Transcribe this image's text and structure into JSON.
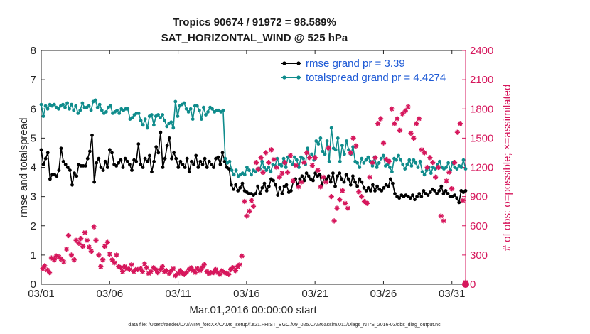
{
  "chart_data": {
    "type": "line",
    "title": "Tropics 90674 / 91972 = 98.589%",
    "subtitle": "SAT_HORIZONTAL_WIND @ 525 hPa",
    "xlabel": "Mar.01,2016 00:00:00 start",
    "ylabel": "rmse and totalspread",
    "ylabel_right": "# of obs: o=possible; ×=assimilated",
    "footer": "data file: /Users/raeder/DAI/ATM_forcXX/CAM6_setup/f.e21.FHIST_BGC.f09_025.CAM6assim.011/Diags_NTrS_2016-03/obs_diag_output.nc",
    "xlim": [
      0,
      31
    ],
    "ylim": [
      0,
      8
    ],
    "ylim_right": [
      0,
      2400
    ],
    "x_ticks": [
      0,
      5,
      10,
      15,
      20,
      25,
      30
    ],
    "x_tick_labels": [
      "03/01",
      "03/06",
      "03/11",
      "03/16",
      "03/21",
      "03/26",
      "03/31"
    ],
    "y_ticks": [
      0,
      1,
      2,
      3,
      4,
      5,
      6,
      7,
      8
    ],
    "y_tick_labels": [
      "0",
      "1",
      "2",
      "3",
      "4",
      "5",
      "6",
      "7",
      "8"
    ],
    "y_right_ticks": [
      0,
      300,
      600,
      900,
      1200,
      1500,
      1800,
      2100,
      2400
    ],
    "y_right_tick_labels": [
      "0",
      "300",
      "600",
      "900",
      "1200",
      "1500",
      "1800",
      "2100",
      "2400"
    ],
    "legend_position": "top-right",
    "colors": {
      "rmse": "#000000",
      "spread": "#0f8c8c",
      "obs": "#d6175c",
      "legend_text": "#1f5bd6"
    },
    "series": [
      {
        "name": "rmse grand pr = 3.39",
        "key": "rmse",
        "values": [
          4.6,
          4.1,
          4.3,
          4.5,
          3.6,
          3.75,
          3.75,
          3.7,
          3.9,
          4.65,
          4.2,
          4.1,
          4.0,
          3.9,
          3.4,
          3.8,
          3.7,
          4.1,
          4.05,
          4.05,
          4.05,
          4.3,
          4.55,
          5.1,
          3.5,
          4.15,
          4.3,
          4.0,
          3.9,
          4.2,
          4.0,
          4.6,
          4.5,
          4.1,
          4.05,
          4.15,
          4.25,
          4.0,
          4.3,
          4.2,
          4.1,
          3.9,
          4.25,
          4.2,
          4.8,
          4.1,
          4.0,
          4.3,
          4.2,
          4.4,
          3.85,
          4.2,
          4.7,
          4.5,
          5.2,
          4.0,
          4.3,
          4.75,
          5.0,
          4.3,
          4.5,
          4.3,
          4.0,
          4.2,
          4.1,
          4.0,
          4.3,
          3.85,
          4.2,
          4.1,
          4.4,
          4.0,
          4.2,
          4.1,
          4.3,
          4.0,
          4.2,
          4.1,
          4.0,
          4.3,
          4.35,
          4.1,
          4.5,
          4.2,
          4.0,
          3.95,
          3.4,
          3.25,
          3.4,
          3.2,
          3.3,
          3.45,
          3.2,
          3.15,
          3.1,
          3.1,
          3.05,
          3.1,
          3.35,
          3.1,
          3.3,
          3.45,
          3.2,
          3.35,
          3.6,
          3.55,
          3.4,
          3.05,
          3.3,
          3.1,
          3.35,
          3.4,
          3.15,
          3.2,
          3.5,
          3.6,
          3.4,
          3.6,
          3.7,
          3.55,
          3.8,
          3.7,
          3.6,
          3.55,
          3.8,
          3.7,
          3.75,
          3.4,
          3.65,
          3.6,
          3.7,
          3.5,
          3.8,
          3.35,
          3.7,
          3.8,
          3.6,
          3.5,
          3.75,
          3.6,
          3.4,
          3.7,
          3.5,
          3.35,
          3.6,
          3.5,
          3.3,
          3.2,
          3.3,
          3.2,
          3.4,
          3.2,
          3.35,
          3.25,
          3.2,
          3.3,
          3.4,
          3.35,
          3.6,
          3.45,
          3.1,
          3.0,
          2.95,
          3.05,
          3.0,
          3.05,
          3.0,
          2.95,
          3.05,
          2.9,
          3.0,
          3.1,
          3.0,
          3.2,
          3.1,
          3.05,
          3.15,
          3.25,
          3.2,
          3.1,
          3.2,
          3.35,
          3.1,
          3.2,
          3.1,
          3.0,
          3.0,
          3.05,
          2.95,
          2.8,
          3.2,
          3.15,
          3.2
        ]
      },
      {
        "name": "totalspread grand pr = 4.4274",
        "key": "spread",
        "values": [
          6.15,
          5.75,
          6.1,
          6.0,
          6.15,
          6.1,
          6.15,
          6.05,
          6.0,
          6.1,
          6.15,
          6.05,
          6.2,
          6.0,
          6.15,
          5.95,
          6.1,
          5.85,
          5.95,
          6.2,
          6.05,
          6.05,
          6.1,
          5.95,
          6.25,
          6.3,
          6.05,
          6.15,
          5.95,
          5.85,
          5.9,
          6.05,
          6.1,
          5.85,
          5.9,
          5.95,
          5.85,
          6.0,
          5.95,
          6.0,
          6.0,
          5.65,
          5.7,
          5.8,
          5.85,
          5.85,
          5.6,
          5.45,
          5.65,
          5.35,
          5.75,
          5.8,
          5.45,
          5.75,
          5.8,
          5.7,
          5.8,
          5.6,
          5.4,
          5.5,
          5.55,
          5.35,
          6.25,
          5.75,
          6.1,
          6.15,
          6.2,
          6.0,
          5.9,
          6.0,
          5.65,
          6.1,
          6.1,
          5.95,
          5.65,
          6.05,
          5.8,
          5.9,
          6.05,
          6.0,
          5.9,
          5.95,
          5.95,
          5.9,
          5.95,
          4.3,
          4.15,
          4.2,
          3.9,
          3.75,
          3.9,
          3.7,
          3.75,
          3.8,
          3.75,
          4.0,
          3.9,
          3.75,
          3.9,
          3.85,
          3.95,
          3.95,
          4.2,
          4.0,
          3.9,
          4.0,
          3.85,
          4.1,
          4.05,
          4.3,
          4.1,
          4.05,
          4.3,
          4.0,
          4.35,
          4.2,
          4.1,
          4.35,
          4.25,
          4.0,
          4.35,
          4.3,
          4.1,
          4.65,
          4.35,
          4.45,
          4.25,
          4.9,
          4.8,
          5.0,
          4.55,
          4.45,
          4.9,
          4.2,
          5.35,
          4.65,
          4.6,
          5.0,
          4.2,
          4.75,
          4.45,
          4.9,
          4.6,
          4.45,
          4.7,
          4.2,
          4.15,
          4.0,
          4.3,
          4.15,
          4.25,
          4.35,
          4.2,
          4.05,
          4.35,
          4.0,
          4.15,
          4.3,
          4.4,
          4.05,
          4.1,
          4.0,
          3.85,
          4.3,
          4.25,
          4.4,
          4.25,
          4.1,
          3.95,
          4.1,
          4.25,
          4.05,
          4.25,
          4.15,
          4.0,
          4.2,
          3.85,
          3.75,
          3.9,
          4.0,
          3.8,
          4.0,
          3.95,
          4.1,
          4.2,
          4.0,
          3.95,
          4.0,
          4.15,
          3.9,
          4.15,
          4.0,
          3.95,
          4.05,
          4.0,
          4.25,
          3.95
        ]
      }
    ],
    "obs_assimilated": [
      [
        0.1,
        160
      ],
      [
        0.25,
        190
      ],
      [
        0.45,
        145
      ],
      [
        0.6,
        120
      ],
      [
        0.75,
        270
      ],
      [
        0.95,
        250
      ],
      [
        1.1,
        290
      ],
      [
        1.3,
        280
      ],
      [
        1.45,
        260
      ],
      [
        1.65,
        230
      ],
      [
        1.85,
        360
      ],
      [
        2.0,
        500
      ],
      [
        2.2,
        300
      ],
      [
        2.4,
        250
      ],
      [
        2.55,
        450
      ],
      [
        2.75,
        420
      ],
      [
        2.9,
        470
      ],
      [
        3.05,
        390
      ],
      [
        3.2,
        530
      ],
      [
        3.35,
        450
      ],
      [
        3.5,
        380
      ],
      [
        3.65,
        340
      ],
      [
        3.85,
        590
      ],
      [
        4.0,
        450
      ],
      [
        4.2,
        300
      ],
      [
        4.35,
        180
      ],
      [
        4.5,
        250
      ],
      [
        4.65,
        390
      ],
      [
        4.85,
        430
      ],
      [
        5.0,
        310
      ],
      [
        5.2,
        250
      ],
      [
        5.35,
        220
      ],
      [
        5.5,
        300
      ],
      [
        5.65,
        180
      ],
      [
        5.8,
        170
      ],
      [
        5.95,
        130
      ],
      [
        6.1,
        180
      ],
      [
        6.25,
        160
      ],
      [
        6.45,
        150
      ],
      [
        6.6,
        200
      ],
      [
        6.75,
        130
      ],
      [
        6.9,
        150
      ],
      [
        7.05,
        150
      ],
      [
        7.25,
        160
      ],
      [
        7.4,
        130
      ],
      [
        7.55,
        210
      ],
      [
        7.7,
        170
      ],
      [
        7.85,
        110
      ],
      [
        8.0,
        130
      ],
      [
        8.2,
        170
      ],
      [
        8.35,
        150
      ],
      [
        8.5,
        120
      ],
      [
        8.7,
        150
      ],
      [
        8.85,
        180
      ],
      [
        9.0,
        130
      ],
      [
        9.15,
        140
      ],
      [
        9.35,
        110
      ],
      [
        9.5,
        140
      ],
      [
        9.65,
        160
      ],
      [
        9.8,
        90
      ],
      [
        10.0,
        110
      ],
      [
        10.15,
        140
      ],
      [
        10.3,
        110
      ],
      [
        10.45,
        100
      ],
      [
        10.6,
        120
      ],
      [
        10.8,
        150
      ],
      [
        10.95,
        170
      ],
      [
        11.1,
        140
      ],
      [
        11.25,
        120
      ],
      [
        11.4,
        160
      ],
      [
        11.6,
        140
      ],
      [
        11.75,
        170
      ],
      [
        11.9,
        200
      ],
      [
        12.1,
        130
      ],
      [
        12.25,
        110
      ],
      [
        12.4,
        120
      ],
      [
        12.6,
        120
      ],
      [
        12.75,
        150
      ],
      [
        12.9,
        120
      ],
      [
        13.05,
        100
      ],
      [
        13.2,
        140
      ],
      [
        13.4,
        120
      ],
      [
        13.55,
        110
      ],
      [
        13.7,
        100
      ],
      [
        13.85,
        150
      ],
      [
        14.0,
        170
      ],
      [
        14.2,
        140
      ],
      [
        14.35,
        180
      ],
      [
        14.5,
        200
      ],
      [
        14.65,
        290
      ],
      [
        14.85,
        850
      ],
      [
        15.0,
        700
      ],
      [
        15.2,
        750
      ],
      [
        15.35,
        860
      ],
      [
        15.5,
        800
      ],
      [
        15.7,
        1250
      ],
      [
        15.85,
        1180
      ],
      [
        16.05,
        1300
      ],
      [
        16.2,
        1150
      ],
      [
        16.4,
        1350
      ],
      [
        16.6,
        1250
      ],
      [
        16.8,
        1380
      ],
      [
        17.0,
        1280
      ],
      [
        17.2,
        1200
      ],
      [
        17.4,
        1100
      ],
      [
        17.6,
        1140
      ],
      [
        17.8,
        1250
      ],
      [
        18.0,
        1150
      ],
      [
        18.2,
        1320
      ],
      [
        18.4,
        1060
      ],
      [
        18.6,
        1220
      ],
      [
        18.8,
        1000
      ],
      [
        19.0,
        1050
      ],
      [
        19.2,
        1250
      ],
      [
        19.4,
        1350
      ],
      [
        19.6,
        1300
      ],
      [
        19.8,
        1220
      ],
      [
        20.0,
        1300
      ],
      [
        20.2,
        1170
      ],
      [
        20.4,
        1000
      ],
      [
        20.6,
        1100
      ],
      [
        20.8,
        1050
      ],
      [
        21.0,
        1400
      ],
      [
        21.2,
        900
      ],
      [
        21.4,
        650
      ],
      [
        21.6,
        780
      ],
      [
        21.8,
        870
      ],
      [
        22.0,
        960
      ],
      [
        22.2,
        830
      ],
      [
        22.4,
        780
      ],
      [
        22.6,
        1350
      ],
      [
        22.8,
        1500
      ],
      [
        23.0,
        1420
      ],
      [
        23.2,
        950
      ],
      [
        23.4,
        900
      ],
      [
        23.6,
        850
      ],
      [
        23.8,
        830
      ],
      [
        24.0,
        1100
      ],
      [
        24.2,
        1250
      ],
      [
        24.4,
        1300
      ],
      [
        24.6,
        1650
      ],
      [
        24.8,
        1700
      ],
      [
        25.0,
        1450
      ],
      [
        25.2,
        1280
      ],
      [
        25.4,
        1260
      ],
      [
        25.6,
        1800
      ],
      [
        25.8,
        1650
      ],
      [
        26.0,
        1700
      ],
      [
        26.2,
        1580
      ],
      [
        26.4,
        1750
      ],
      [
        26.6,
        1780
      ],
      [
        26.8,
        1820
      ],
      [
        27.0,
        1550
      ],
      [
        27.2,
        1500
      ],
      [
        27.4,
        1650
      ],
      [
        27.6,
        1700
      ],
      [
        27.8,
        1380
      ],
      [
        28.0,
        1350
      ],
      [
        28.2,
        1200
      ],
      [
        28.4,
        1300
      ],
      [
        28.6,
        1250
      ],
      [
        28.8,
        1100
      ],
      [
        29.0,
        1200
      ],
      [
        29.2,
        700
      ],
      [
        29.4,
        650
      ],
      [
        29.6,
        1060
      ],
      [
        29.8,
        1150
      ],
      [
        30.0,
        980
      ],
      [
        30.2,
        1250
      ],
      [
        30.4,
        1560
      ],
      [
        30.6,
        1650
      ],
      [
        30.8,
        860
      ],
      [
        31.0,
        20
      ]
    ],
    "obs_possible": [
      [
        31.0,
        0
      ]
    ]
  }
}
